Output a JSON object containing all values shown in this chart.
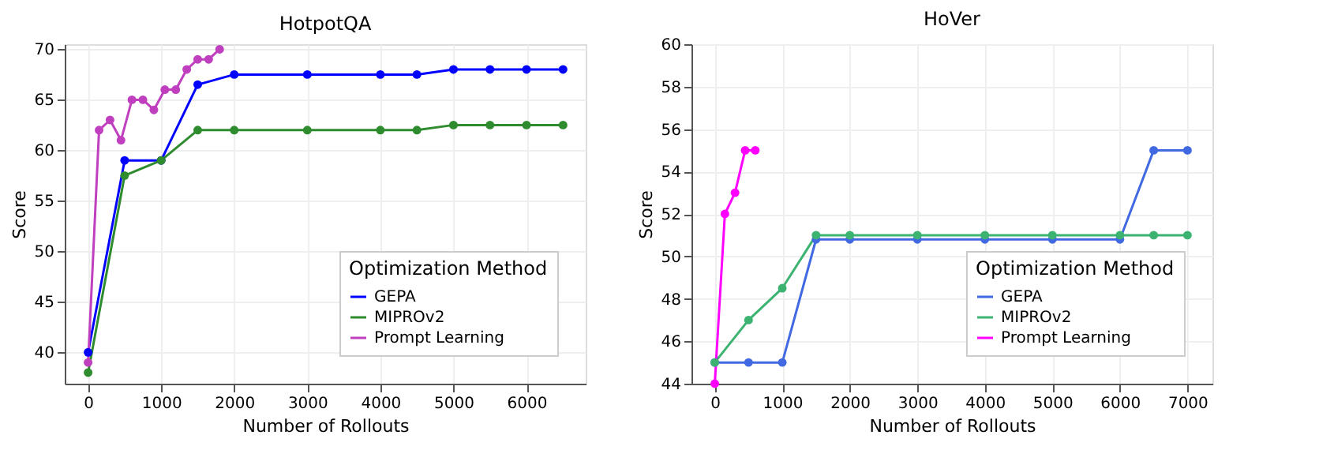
{
  "chart_data": [
    {
      "type": "line",
      "title": "HotpotQA",
      "xlabel": "Number of Rollouts",
      "ylabel": "Score",
      "legend_title": "Optimization Method",
      "legend": "bottom right",
      "grid": true,
      "marker": "circle",
      "line_style": "solid",
      "xlim": [
        -320,
        6810
      ],
      "xticks": [
        0,
        1000,
        2000,
        3000,
        4000,
        5000,
        6000
      ],
      "ylim": [
        36.9,
        70.5
      ],
      "yticks": [
        40,
        45,
        50,
        55,
        60,
        65,
        70
      ],
      "series": [
        {
          "name": "GEPA",
          "color": "#0000ff",
          "x": [
            0,
            500,
            1000,
            1500,
            2000,
            3000,
            4000,
            4500,
            5000,
            5500,
            6000,
            6500
          ],
          "values": [
            40,
            59,
            59,
            66.5,
            67.5,
            67.5,
            67.5,
            67.5,
            68,
            68,
            68,
            68
          ]
        },
        {
          "name": "MIPROv2",
          "color": "#2e8b2e",
          "x": [
            0,
            500,
            1000,
            1500,
            2000,
            3000,
            4000,
            4500,
            5000,
            5500,
            6000,
            6500
          ],
          "values": [
            38,
            57.5,
            59,
            62,
            62,
            62,
            62,
            62,
            62.5,
            62.5,
            62.5,
            62.5
          ]
        },
        {
          "name": "Prompt Learning",
          "color": "#bf3fbf",
          "x": [
            0,
            150,
            300,
            450,
            600,
            750,
            900,
            1050,
            1200,
            1350,
            1500,
            1650,
            1800
          ],
          "values": [
            39,
            62,
            63,
            61,
            65,
            65,
            64,
            66,
            66,
            68,
            69,
            69,
            70
          ]
        }
      ]
    },
    {
      "type": "line",
      "title": "HoVer",
      "xlabel": "Number of Rollouts",
      "ylabel": "Score",
      "legend_title": "Optimization Method",
      "legend": "bottom right",
      "grid": true,
      "marker": "circle",
      "line_style": "solid",
      "xlim": [
        -345,
        7370
      ],
      "xticks": [
        0,
        1000,
        2000,
        3000,
        4000,
        5000,
        6000,
        7000
      ],
      "ylim": [
        44,
        60
      ],
      "yticks": [
        44,
        46,
        48,
        50,
        52,
        54,
        56,
        58,
        60
      ],
      "series": [
        {
          "name": "GEPA",
          "color": "#4169e1",
          "x": [
            0,
            500,
            1000,
            1500,
            2000,
            3000,
            4000,
            5000,
            6000,
            6500,
            7000
          ],
          "values": [
            45,
            45,
            45,
            50.8,
            50.8,
            50.8,
            50.8,
            50.8,
            50.8,
            55,
            55
          ]
        },
        {
          "name": "MIPROv2",
          "color": "#3cb371",
          "x": [
            0,
            500,
            1000,
            1500,
            2000,
            3000,
            4000,
            5000,
            6000,
            6500,
            7000
          ],
          "values": [
            45,
            47,
            48.5,
            51,
            51,
            51,
            51,
            51,
            51,
            51,
            51
          ]
        },
        {
          "name": "Prompt Learning",
          "color": "#ff00ff",
          "x": [
            0,
            150,
            300,
            450,
            600
          ],
          "values": [
            44,
            52,
            53,
            55,
            55
          ]
        }
      ]
    }
  ]
}
